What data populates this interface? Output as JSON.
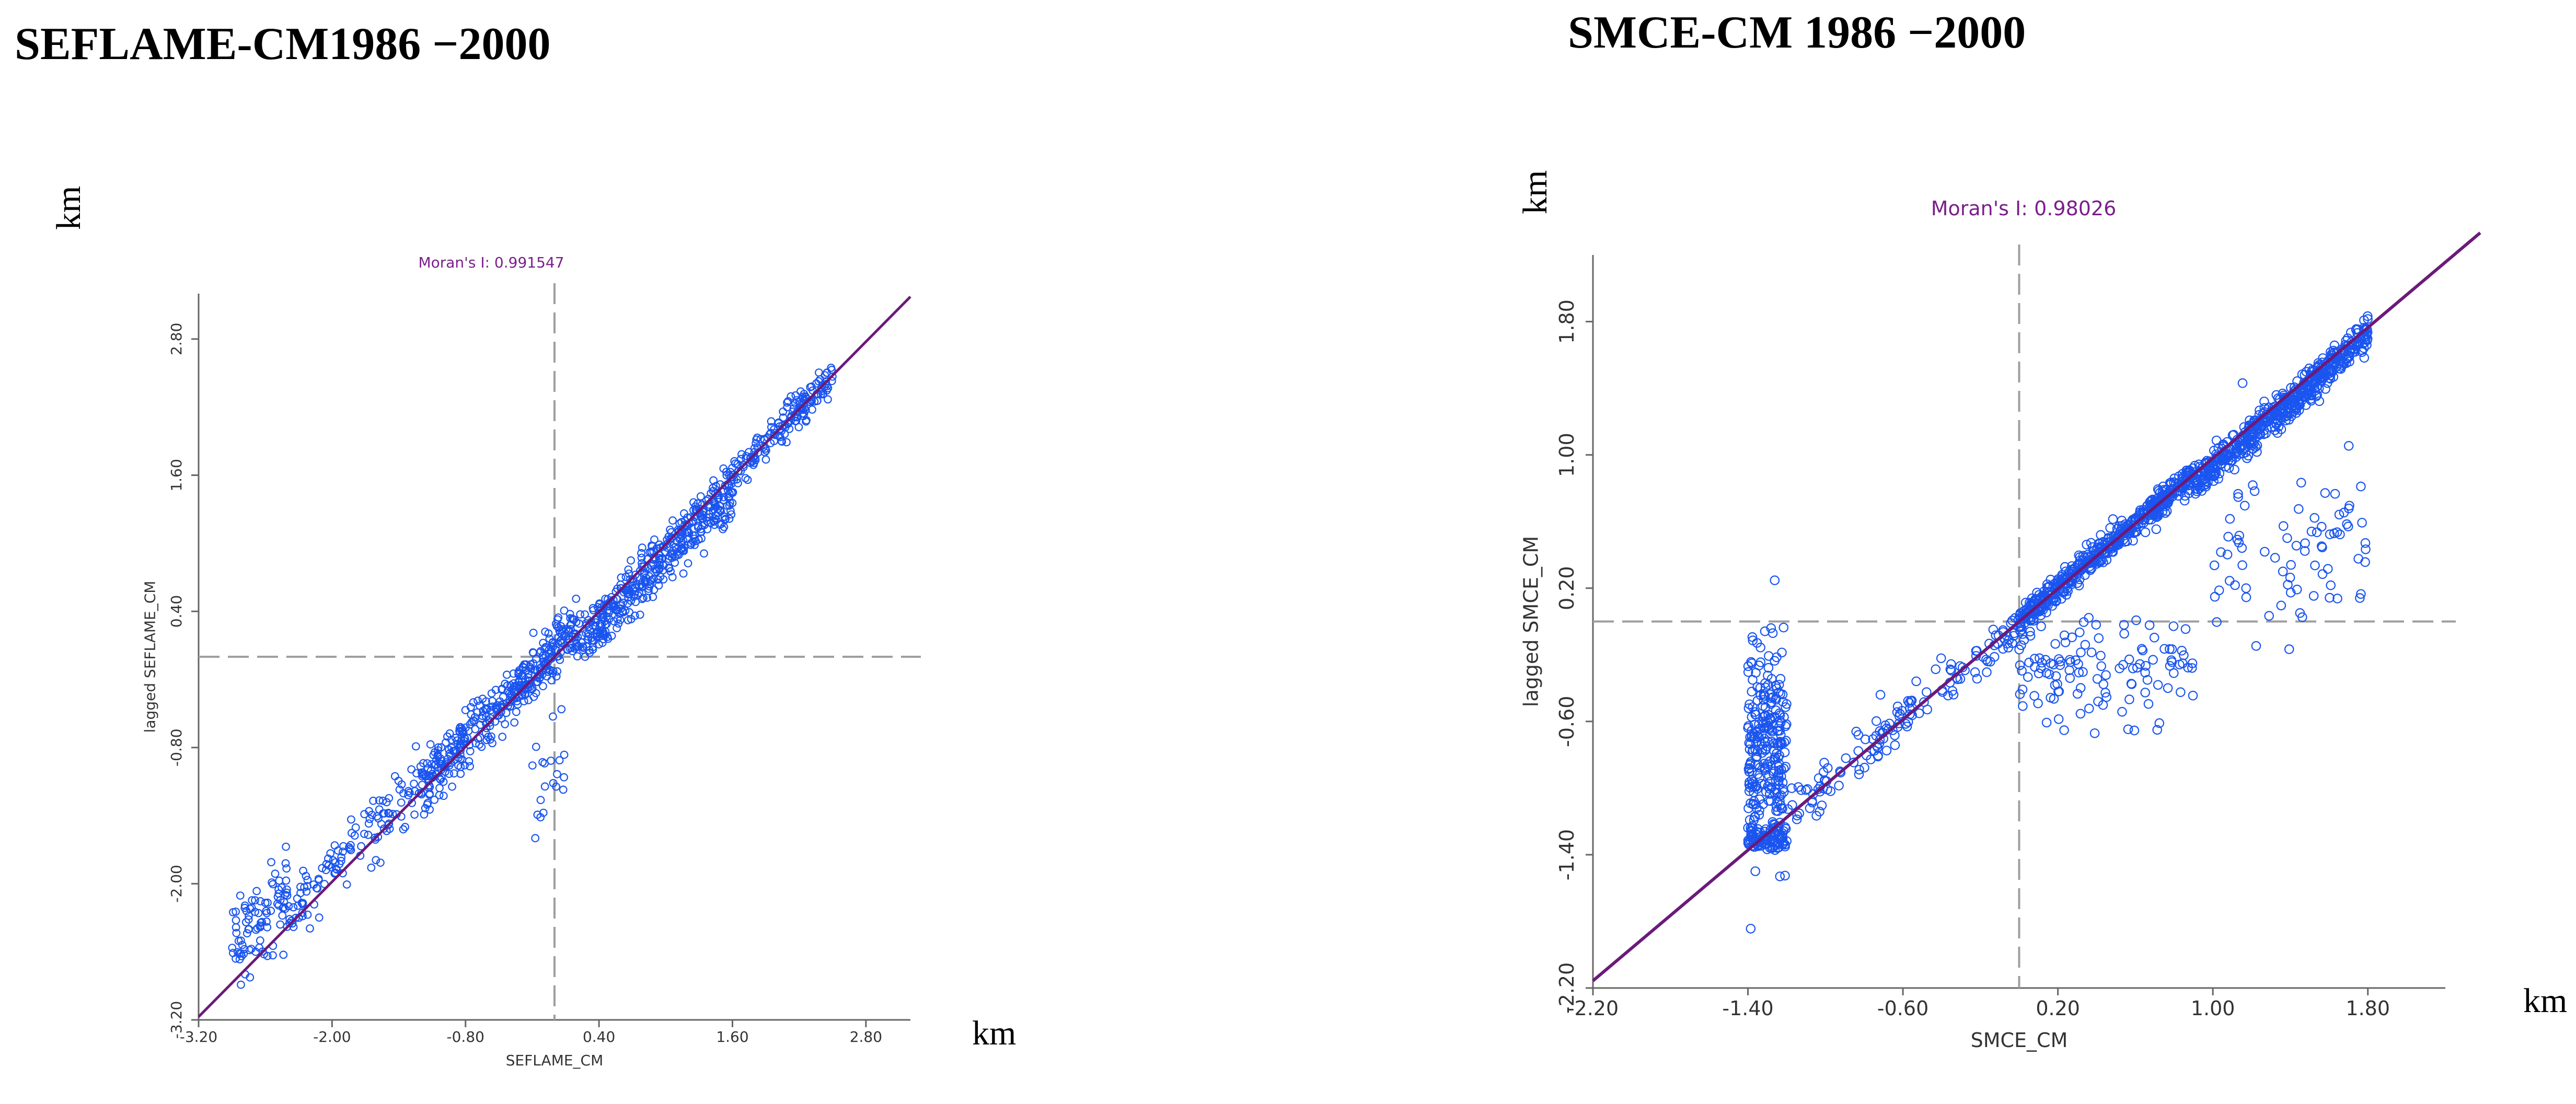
{
  "colors": {
    "points": "#1a55f0",
    "regression": "#6b1a7a",
    "moran_text": "#7a1f8a",
    "mean_lines": "#9e9e9e",
    "axes": "#666666"
  },
  "chart_data": [
    {
      "type": "scatter",
      "title": "SEFLAME-CM1986 −2000",
      "xlabel": "SEFLAME_CM",
      "ylabel": "lagged SEFLAME_CM",
      "x_unit": "km",
      "y_unit": "km",
      "annotation": "Moran's I: 0.991547",
      "slope": 0.991547,
      "xlim": [
        -3.2,
        3.2
      ],
      "ylim": [
        -3.2,
        3.2
      ],
      "xticks": [
        -3.2,
        -2.0,
        -0.8,
        0.4,
        1.6,
        2.8
      ],
      "yticks": [
        -3.2,
        -2.0,
        -0.8,
        0.4,
        1.6,
        2.8
      ],
      "xtick_labels": [
        "-3.20",
        "-2.00",
        "-0.80",
        "0.40",
        "1.60",
        "2.80"
      ],
      "ytick_labels": [
        "-3.20",
        "-2.00",
        "-0.80",
        "0.40",
        "1.60",
        "2.80"
      ],
      "mean_x": 0.0,
      "mean_y": 0.0,
      "clusters": [
        {
          "x_range": [
            -2.9,
            -2.4
          ],
          "y_center_offset": 0.3,
          "spread": 0.45,
          "count": 90
        },
        {
          "x_range": [
            -2.4,
            -1.2
          ],
          "y_center_offset": 0.1,
          "spread": 0.25,
          "count": 120
        },
        {
          "x_range": [
            -1.2,
            0.2
          ],
          "y_center_offset": 0.05,
          "spread": 0.25,
          "count": 380
        },
        {
          "x_range": [
            0.2,
            1.6
          ],
          "y_center_offset": -0.1,
          "spread": 0.25,
          "count": 420
        },
        {
          "x_range": [
            1.6,
            2.5
          ],
          "y_center_offset": 0.0,
          "spread": 0.15,
          "count": 160
        },
        {
          "x_range": [
            -0.2,
            0.2
          ],
          "y_center_offset": -1.0,
          "spread": 0.5,
          "count": 20
        }
      ]
    },
    {
      "type": "scatter",
      "title": "SMCE-CM 1986 −2000",
      "xlabel": "SMCE_CM",
      "ylabel": "lagged SMCE_CM",
      "x_unit": "km",
      "y_unit": "km",
      "annotation": "Moran's I: 0.98026",
      "slope": 0.98026,
      "xlim": [
        -2.2,
        2.2
      ],
      "ylim": [
        -2.2,
        2.2
      ],
      "xticks": [
        -2.2,
        -1.4,
        -0.6,
        0.2,
        1.0,
        1.8
      ],
      "yticks": [
        -2.2,
        -1.4,
        -0.6,
        0.2,
        1.0,
        1.8
      ],
      "xtick_labels": [
        "-2.20",
        "-1.40",
        "-0.60",
        "0.20",
        "1.00",
        "1.80"
      ],
      "ytick_labels": [
        "-2.20",
        "-1.40",
        "-0.60",
        "0.20",
        "1.00",
        "1.80"
      ],
      "mean_x": 0.0,
      "mean_y": 0.0,
      "clusters": [
        {
          "x_range": [
            -1.4,
            -1.2
          ],
          "y_center": -0.75,
          "y_spread": 0.65,
          "count": 260
        },
        {
          "x_range": [
            -1.4,
            -1.2
          ],
          "y_center": -1.3,
          "y_spread": 0.08,
          "count": 90
        },
        {
          "x_range": [
            -1.2,
            0.0
          ],
          "y_center_offset": 0.0,
          "spread": 0.15,
          "count": 140
        },
        {
          "x_range": [
            0.0,
            0.9
          ],
          "y_center_offset": 0.0,
          "spread": 0.08,
          "count": 500
        },
        {
          "x_range": [
            0.0,
            0.9
          ],
          "y_center": -0.3,
          "y_spread": 0.35,
          "count": 120
        },
        {
          "x_range": [
            0.9,
            1.8
          ],
          "y_center_offset": -0.05,
          "spread": 0.1,
          "count": 520
        },
        {
          "x_range": [
            1.0,
            1.8
          ],
          "y_center": 0.5,
          "y_spread": 0.6,
          "count": 80
        }
      ]
    }
  ]
}
